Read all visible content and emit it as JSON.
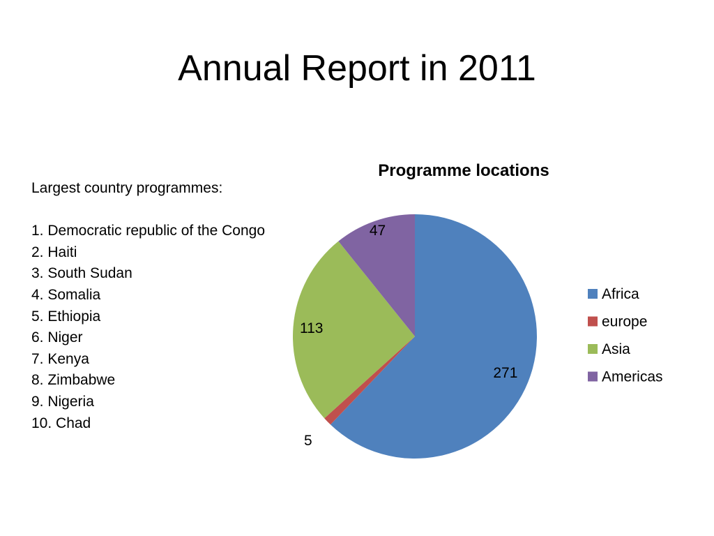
{
  "slide": {
    "title": "Annual Report in 2011"
  },
  "programmes": {
    "heading": "Largest country programmes:",
    "items": [
      "1. Democratic republic  of the Congo",
      "2. Haiti",
      "3. South Sudan",
      "4. Somalia",
      "5. Ethiopia",
      "6. Niger",
      "7. Kenya",
      "8. Zimbabwe",
      "9. Nigeria",
      "10. Chad"
    ]
  },
  "chart_data": {
    "type": "pie",
    "title": "Programme locations",
    "categories": [
      "Africa",
      "europe",
      "Asia",
      "Americas"
    ],
    "values": [
      271,
      5,
      113,
      47
    ],
    "colors": [
      "#4F81BD",
      "#C0504D",
      "#9BBB59",
      "#8064A2"
    ],
    "legend": "right",
    "data_labels": true
  }
}
